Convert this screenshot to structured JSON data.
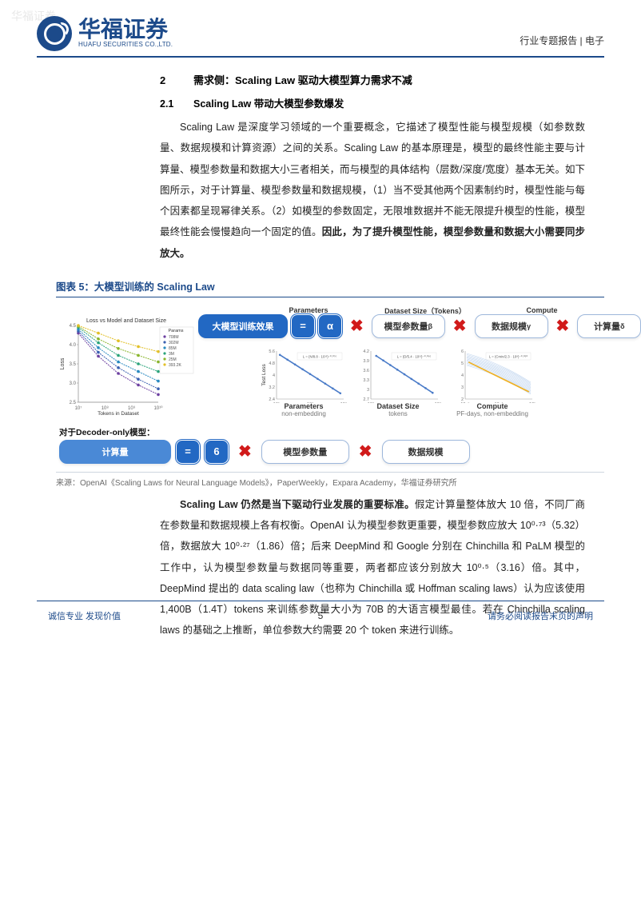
{
  "watermark": "华福证券",
  "header": {
    "logo_cn": "华福证券",
    "logo_en": "HUAFU SECURITIES CO.,LTD.",
    "right_text": "行业专题报告 | 电子"
  },
  "section": {
    "num": "2",
    "title": "需求侧：Scaling Law 驱动大模型算力需求不减"
  },
  "subsection": {
    "num": "2.1",
    "title": "Scaling Law 带动大模型参数爆发"
  },
  "para1": "Scaling Law 是深度学习领域的一个重要概念，它描述了模型性能与模型规模（如参数数量、数据规模和计算资源）之间的关系。Scaling Law 的基本原理是，模型的最终性能主要与计算量、模型参数量和数据大小三者相关，而与模型的具体结构（层数/深度/宽度）基本无关。如下图所示，对于计算量、模型参数量和数据规模，（1）当不受其他两个因素制约时，模型性能与每个因素都呈现幂律关系。（2）如模型的参数固定，无限堆数据并不能无限提升模型的性能，模型最终性能会慢慢趋向一个固定的值。",
  "para1_bold": "因此，为了提升模型性能，模型参数量和数据大小需要同步放大。",
  "figure": {
    "caption": "图表 5：大模型训练的 Scaling Law",
    "source": "来源：OpenAI《Scaling Laws for Neural Language Models》，PaperWeekly，Expara Academy，华福证券研究所",
    "eq1": {
      "left": "大模型训练效果",
      "alpha": "α",
      "term1_label": "Parameters",
      "term1": "模型参数量",
      "term1_exp": "β",
      "term2_label": "Dataset Size（Tokens）",
      "term2": "数据规模",
      "term2_exp": "γ",
      "term3_label": "Compute",
      "term3": "计算量",
      "term3_exp": "δ"
    },
    "eq2": {
      "prefix": "对于Decoder-only模型：",
      "left": "计算量",
      "const": "6",
      "term1": "模型参数量",
      "term2": "数据规模"
    },
    "loss_chart": {
      "title": "Loss vs Model and Dataset Size",
      "ylabel": "Loss",
      "xlabel": "Tokens in Dataset",
      "ylim": [
        2.5,
        4.5
      ],
      "ytick_step": 0.5,
      "xticks": [
        "10⁷",
        "10⁸",
        "10⁹",
        "10¹⁰"
      ],
      "legend_title": "Params",
      "legend_items": [
        "708M",
        "302M",
        "85M",
        "3M",
        "25M",
        "393.2K"
      ],
      "series_colors": [
        "#6c3fa0",
        "#3a5fb0",
        "#2a8ac0",
        "#29a37a",
        "#8ab52c",
        "#e2c028"
      ],
      "curves": [
        [
          [
            0,
            4.3
          ],
          [
            0.25,
            3.7
          ],
          [
            0.5,
            3.25
          ],
          [
            0.75,
            2.95
          ],
          [
            1,
            2.7
          ]
        ],
        [
          [
            0,
            4.35
          ],
          [
            0.25,
            3.8
          ],
          [
            0.5,
            3.4
          ],
          [
            0.75,
            3.1
          ],
          [
            1,
            2.85
          ]
        ],
        [
          [
            0,
            4.4
          ],
          [
            0.25,
            3.92
          ],
          [
            0.5,
            3.55
          ],
          [
            0.75,
            3.3
          ],
          [
            1,
            3.05
          ]
        ],
        [
          [
            0,
            4.45
          ],
          [
            0.25,
            4.05
          ],
          [
            0.5,
            3.72
          ],
          [
            0.75,
            3.5
          ],
          [
            1,
            3.3
          ]
        ],
        [
          [
            0,
            4.48
          ],
          [
            0.25,
            4.15
          ],
          [
            0.5,
            3.9
          ],
          [
            0.75,
            3.72
          ],
          [
            1,
            3.55
          ]
        ],
        [
          [
            0,
            4.5
          ],
          [
            0.25,
            4.3
          ],
          [
            0.5,
            4.1
          ],
          [
            0.75,
            3.95
          ],
          [
            1,
            3.82
          ]
        ]
      ]
    },
    "mini_charts": [
      {
        "title": "Parameters",
        "sub": "non-embedding",
        "anno": "L = (N/8.8 · 10¹³)⁻⁰·⁰⁷⁶",
        "ylabel": "Test Loss",
        "xticks": [
          "10⁵",
          "10⁷",
          "10⁹"
        ],
        "ylim": [
          2.4,
          5.6
        ],
        "yticks": [
          2.4,
          3.2,
          4.0,
          4.8,
          5.6
        ],
        "line_start": [
          0.05,
          0.08
        ],
        "line_end": [
          0.95,
          0.88
        ],
        "line_color": "#4a7bc8"
      },
      {
        "title": "Dataset Size",
        "sub": "tokens",
        "anno": "L = (D/5.4 · 10¹³)⁻⁰·⁰⁹⁵",
        "xticks": [
          "10⁸",
          "10⁹"
        ],
        "ylim": [
          2.7,
          4.2
        ],
        "yticks": [
          2.7,
          3.0,
          3.3,
          3.6,
          3.9,
          4.2
        ],
        "line_start": [
          0.08,
          0.1
        ],
        "line_end": [
          0.92,
          0.87
        ],
        "line_color": "#4a7bc8"
      },
      {
        "title": "Compute",
        "sub": "PF-days, non-embedding",
        "anno": "L = (Cmin/2.3 · 10⁸)⁻⁰·⁰⁵⁰",
        "xticks": [
          "10⁻⁵",
          "10⁻¹",
          "10¹"
        ],
        "ylim": [
          2,
          6
        ],
        "yticks": [
          2,
          3,
          4,
          5,
          6
        ],
        "fan_color": "#a8c5e8",
        "line_color": "#f0b020",
        "line_start": [
          0.05,
          0.23
        ],
        "line_end": [
          0.95,
          0.85
        ]
      }
    ]
  },
  "para2_lead": "Scaling Law 仍然是当下驱动行业发展的重要标准。",
  "para2": "假定计算量整体放大 10 倍，不同厂商在参数量和数据规模上各有权衡。OpenAI 认为模型参数更重要，模型参数应放大 10⁰·⁷³（5.32）倍，数据放大 10⁰·²⁷（1.86）倍；后来 DeepMind 和 Google 分别在 Chinchilla 和 PaLM 模型的工作中，认为模型参数量与数据同等重要，两者都应该分别放大 10⁰·⁵（3.16）倍。其中，DeepMind 提出的 data scaling law（也称为 Chinchilla 或 Hoffman scaling laws）认为应该使用 1,400B（1.4T）tokens 来训练参数量大小为 70B 的大语言模型最佳。若在 Chinchilla scaling laws 的基础之上推断，单位参数大约需要 20 个 token 来进行训练。",
  "footer": {
    "left": "诚信专业  发现价值",
    "page": "5",
    "right": "请务必阅读报告末页的声明"
  }
}
